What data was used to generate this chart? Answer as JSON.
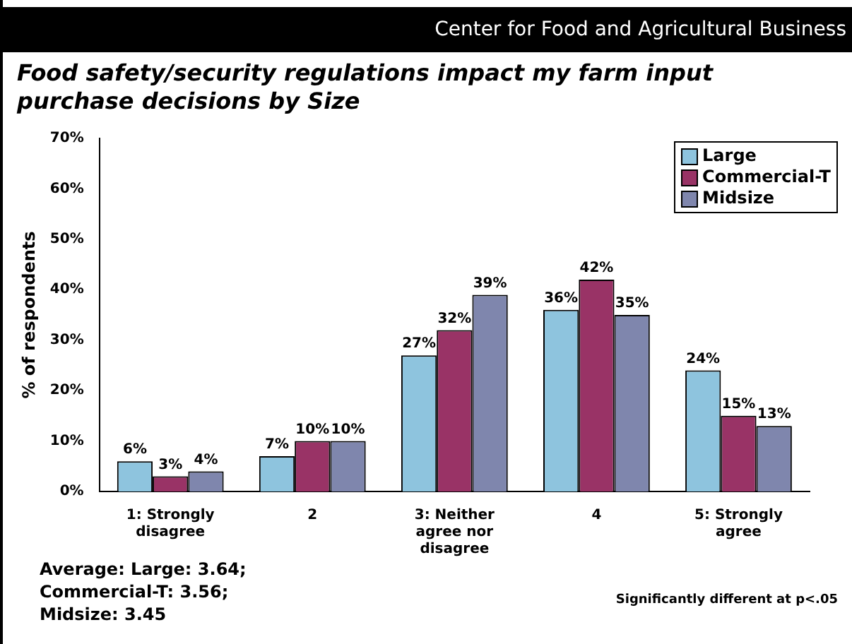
{
  "chart_data": {
    "type": "bar",
    "title": "Food safety/security regulations impact my farm input purchase decisions by Size",
    "ylabel": "% of respondents",
    "annotations": [
      "Center for Food and Agricultural Business",
      "Average: Large: 3.64; Commercial-T: 3.56; Midsize: 3.45",
      "Significantly different at p<.05"
    ],
    "categories": [
      "1: Strongly disagree",
      "2",
      "3: Neither agree nor disagree",
      "4",
      "5: Strongly agree"
    ],
    "series": [
      {
        "name": "Large",
        "color": "#8ec4de",
        "values": [
          6,
          7,
          27,
          36,
          24
        ],
        "value_labels": [
          "6%",
          "7%",
          "27%",
          "36%",
          "24%"
        ]
      },
      {
        "name": "Commercial-T",
        "color": "#993366",
        "values": [
          3,
          10,
          32,
          42,
          15
        ],
        "value_labels": [
          "3%",
          "10%",
          "32%",
          "42%",
          "15%"
        ]
      },
      {
        "name": "Midsize",
        "color": "#7f86ad",
        "values": [
          4,
          10,
          39,
          35,
          13
        ],
        "value_labels": [
          "4%",
          "10%",
          "39%",
          "35%",
          "13%"
        ]
      }
    ],
    "ylim": [
      0,
      70
    ],
    "yticks": [
      {
        "value": 0,
        "label": "0%"
      },
      {
        "value": 10,
        "label": "10%"
      },
      {
        "value": 20,
        "label": "20%"
      },
      {
        "value": 30,
        "label": "30%"
      },
      {
        "value": 40,
        "label": "40%"
      },
      {
        "value": 50,
        "label": "50%"
      },
      {
        "value": 60,
        "label": "60%"
      },
      {
        "value": 70,
        "label": "70%"
      }
    ],
    "grid": false,
    "legend": "top right"
  }
}
